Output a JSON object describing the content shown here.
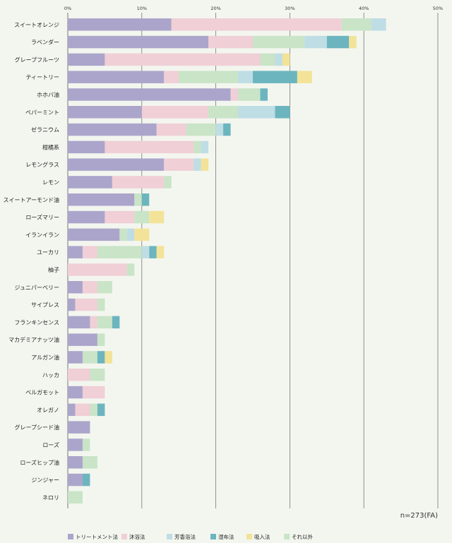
{
  "chart_data": {
    "type": "bar",
    "orientation": "horizontal",
    "stacked": true,
    "title": "",
    "xlabel": "",
    "ylabel": "",
    "xlim": [
      0,
      50
    ],
    "xticks": [
      "0%",
      "10%",
      "20%",
      "30%",
      "40%",
      "50%"
    ],
    "grid": true,
    "legend_position": "bottom",
    "note": "n=273(FA)",
    "colors": [
      "#aba5cb",
      "#f0cfd6",
      "#bfdde4",
      "#6cb5bf",
      "#f3e398",
      "#c9e4c7"
    ],
    "categories": [
      "スイートオレンジ",
      "ラベンダー",
      "グレープフルーツ",
      "ティートリー",
      "ホホバ油",
      "ペパーミント",
      "ゼラニウム",
      "柑橘系",
      "レモングラス",
      "レモン",
      "スイートアーモンド油",
      "ローズマリー",
      "イランイラン",
      "ユーカリ",
      "柚子",
      "ジュニパーベリー",
      "サイプレス",
      "フランキンセンス",
      "マカデミアナッツ油",
      "アルガン油",
      "ハッカ",
      "ベルガモット",
      "オレガノ",
      "グレープシード油",
      "ローズ",
      "ローズヒップ油",
      "ジンジャー",
      "ネロリ"
    ],
    "series": [
      {
        "name": "トリートメント法",
        "values": [
          14,
          19,
          5,
          13,
          22,
          10,
          12,
          5,
          13,
          6,
          9,
          5,
          7,
          2,
          0,
          2,
          1,
          3,
          4,
          2,
          0,
          2,
          1,
          3,
          2,
          2,
          2,
          0
        ]
      },
      {
        "name": "沐浴法",
        "values": [
          23,
          6,
          21,
          2,
          1,
          9,
          4,
          12,
          4,
          7,
          0,
          4,
          0,
          2,
          8,
          2,
          3,
          1,
          0,
          0,
          3,
          3,
          2,
          0,
          0,
          0,
          0,
          0
        ]
      },
      {
        "name": "芳香浴法",
        "values": [
          2,
          3,
          1,
          2,
          0,
          5,
          1,
          1,
          1,
          0,
          0,
          0,
          1,
          1,
          0,
          0,
          0,
          0,
          0,
          0,
          0,
          0,
          0,
          0,
          0,
          0,
          0,
          0
        ]
      },
      {
        "name": "湿布法",
        "values": [
          0,
          3,
          0,
          6,
          1,
          2,
          1,
          0,
          0,
          0,
          1,
          0,
          0,
          1,
          0,
          0,
          0,
          1,
          0,
          1,
          0,
          0,
          1,
          0,
          0,
          0,
          1,
          0
        ]
      },
      {
        "name": "吸入法",
        "values": [
          0,
          1,
          1,
          2,
          0,
          0,
          0,
          0,
          1,
          0,
          0,
          2,
          2,
          1,
          0,
          0,
          0,
          0,
          0,
          1,
          0,
          0,
          0,
          0,
          0,
          0,
          0,
          0
        ]
      },
      {
        "name": "それ以外",
        "values": [
          4,
          7,
          2,
          8,
          3,
          4,
          4,
          1,
          0,
          1,
          1,
          2,
          1,
          6,
          1,
          2,
          1,
          2,
          1,
          2,
          2,
          0,
          1,
          0,
          1,
          2,
          0,
          2
        ]
      }
    ],
    "stack_order": [
      0,
      1,
      5,
      2,
      3,
      4
    ]
  }
}
